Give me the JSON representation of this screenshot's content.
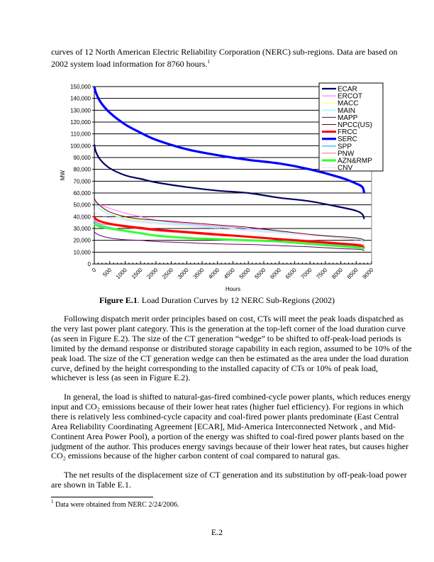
{
  "intro_lines": [
    "curves of 12 North American Electric Reliability Corporation (NERC) sub-regions.  Data are based on",
    "2002 system load information for 8760 hours."
  ],
  "intro_footnote_ref": "1",
  "caption": {
    "label": "Figure E.1",
    "text": ".  Load Duration Curves by 12 NERC Sub-Regions (2002)"
  },
  "paragraph1": [
    "Following dispatch merit order principles based on cost, CTs will meet the peak loads dispatched as",
    "the very last power plant category.  This is the generation at the top-left corner of the load duration curve",
    "(as seen in Figure E.2).  The size of the CT generation “wedge” to be shifted to off-peak-load periods is",
    "limited by the demand response or distributed storage capability in each region, assumed to be 10% of the",
    "peak load.  The size of the CT generation wedge can then be estimated as the area under the load duration",
    "curve, defined by the height corresponding to the installed capacity of CTs or 10% of peak load,",
    "whichever is less (as seen in Figure E.2)."
  ],
  "paragraph2": [
    "In general, the load is shifted to natural-gas-fired combined-cycle power plants, which reduces energy",
    "input and CO₂ emissions because of their lower heat rates (higher fuel efficiency).  For regions in which",
    "there is relatively less combined-cycle capacity and coal-fired power plants predominate (East Central",
    "Area Reliability Coordinating Agreement [ECAR], Mid-America Interconnected Network , and Mid-",
    "Continent Area Power Pool), a portion of the energy was shifted to coal-fired power plants based on the",
    "judgment of the author.  This produces energy savings because of their lower heat rates, but causes higher",
    "CO₂ emissions because of the higher carbon content of coal compared to natural gas."
  ],
  "paragraph3": [
    "The net results of the displacement size of CT generation and its substitution by off-peak-load power",
    "are shown in Table E.1."
  ],
  "footnote": {
    "mark": "1",
    "text": " Data were obtained from NERC 2/24/2006."
  },
  "page_number": "E.2",
  "chart_data": {
    "type": "line",
    "title": "",
    "xlabel": "Hours",
    "ylabel": "MW",
    "xlim": [
      0,
      9000
    ],
    "ylim": [
      0,
      150000
    ],
    "x_ticks": [
      "0",
      "500",
      "1000",
      "1500",
      "2000",
      "2500",
      "3000",
      "3500",
      "4000",
      "4500",
      "5000",
      "5500",
      "6000",
      "6500",
      "7000",
      "7500",
      "8000",
      "8500",
      "9000"
    ],
    "y_ticks": [
      "0",
      "10,000",
      "20,000",
      "30,000",
      "40,000",
      "50,000",
      "60,000",
      "70,000",
      "80,000",
      "90,000",
      "100,000",
      "110,000",
      "120,000",
      "130,000",
      "140,000",
      "150,000"
    ],
    "grid": true,
    "legend_position": "top-right",
    "x": [
      0,
      50,
      200,
      500,
      1000,
      1500,
      2000,
      3000,
      4000,
      5000,
      6000,
      7000,
      8000,
      8500,
      8700,
      8760
    ],
    "series": [
      {
        "name": "ECAR",
        "color": "#000066",
        "values": [
          101000,
          95000,
          88000,
          81000,
          75000,
          72000,
          69000,
          65000,
          62000,
          60000,
          56000,
          53000,
          48000,
          45000,
          42000,
          38000
        ]
      },
      {
        "name": "ERCOT",
        "color": "#ff66ff",
        "values": [
          55000,
          52000,
          50000,
          47000,
          43000,
          40000,
          37000,
          34000,
          32000,
          30000,
          28000,
          25000,
          22000,
          21000,
          20000,
          19000
        ]
      },
      {
        "name": "MACC",
        "color": "#ffff66",
        "values": [
          53000,
          50000,
          46000,
          42000,
          39000,
          37000,
          35000,
          33000,
          31000,
          29000,
          27000,
          25000,
          22000,
          21000,
          20000,
          19000
        ]
      },
      {
        "name": "MAIN",
        "color": "#66ffff",
        "values": [
          53000,
          50000,
          46000,
          42000,
          38000,
          36000,
          35000,
          33000,
          31000,
          29000,
          27000,
          25000,
          22000,
          21000,
          20000,
          18000
        ]
      },
      {
        "name": "MAPP",
        "color": "#660066",
        "values": [
          27000,
          26000,
          24000,
          22000,
          20500,
          20000,
          19000,
          18000,
          17000,
          16500,
          15500,
          14500,
          13000,
          12500,
          12000,
          11000
        ]
      },
      {
        "name": "NPCC(US)",
        "color": "#660000",
        "values": [
          56000,
          53000,
          49000,
          44000,
          40000,
          38000,
          37000,
          35000,
          33000,
          31000,
          28000,
          25000,
          23000,
          22000,
          21000,
          20000
        ]
      },
      {
        "name": "FRCC",
        "color": "#ff0000",
        "values": [
          40000,
          38000,
          36000,
          34000,
          32000,
          30500,
          29000,
          27000,
          25000,
          23000,
          21000,
          19000,
          17000,
          16000,
          15000,
          13000
        ]
      },
      {
        "name": "SERC",
        "color": "#0000ff",
        "values": [
          150000,
          145000,
          137000,
          128000,
          118000,
          111000,
          105000,
          97000,
          92000,
          88000,
          85000,
          80000,
          73000,
          68000,
          65000,
          60000
        ]
      },
      {
        "name": "SPP",
        "color": "#66ccff",
        "values": [
          37000,
          35000,
          33000,
          31000,
          28000,
          26000,
          24000,
          22000,
          21000,
          20000,
          19000,
          17000,
          16000,
          15000,
          14000,
          13000
        ]
      },
      {
        "name": "PNW",
        "color": "#ff6666",
        "values": [
          38000,
          36000,
          34000,
          33000,
          31000,
          29500,
          28000,
          26000,
          24000,
          23000,
          21500,
          20000,
          18000,
          17000,
          16500,
          16000
        ]
      },
      {
        "name": "AZN&RMP",
        "color": "#33ff33",
        "values": [
          34000,
          33000,
          31500,
          30000,
          28000,
          26000,
          24000,
          22000,
          21000,
          20000,
          19000,
          17000,
          15000,
          14000,
          13500,
          13000
        ]
      },
      {
        "name": "CNV",
        "color": "#ff99ff",
        "dashed": true,
        "values": [
          45000,
          43000,
          41000,
          39000,
          37000,
          35000,
          34000,
          32000,
          30000,
          28000,
          26000,
          24000,
          22000,
          20000,
          19000,
          18000
        ]
      }
    ]
  }
}
